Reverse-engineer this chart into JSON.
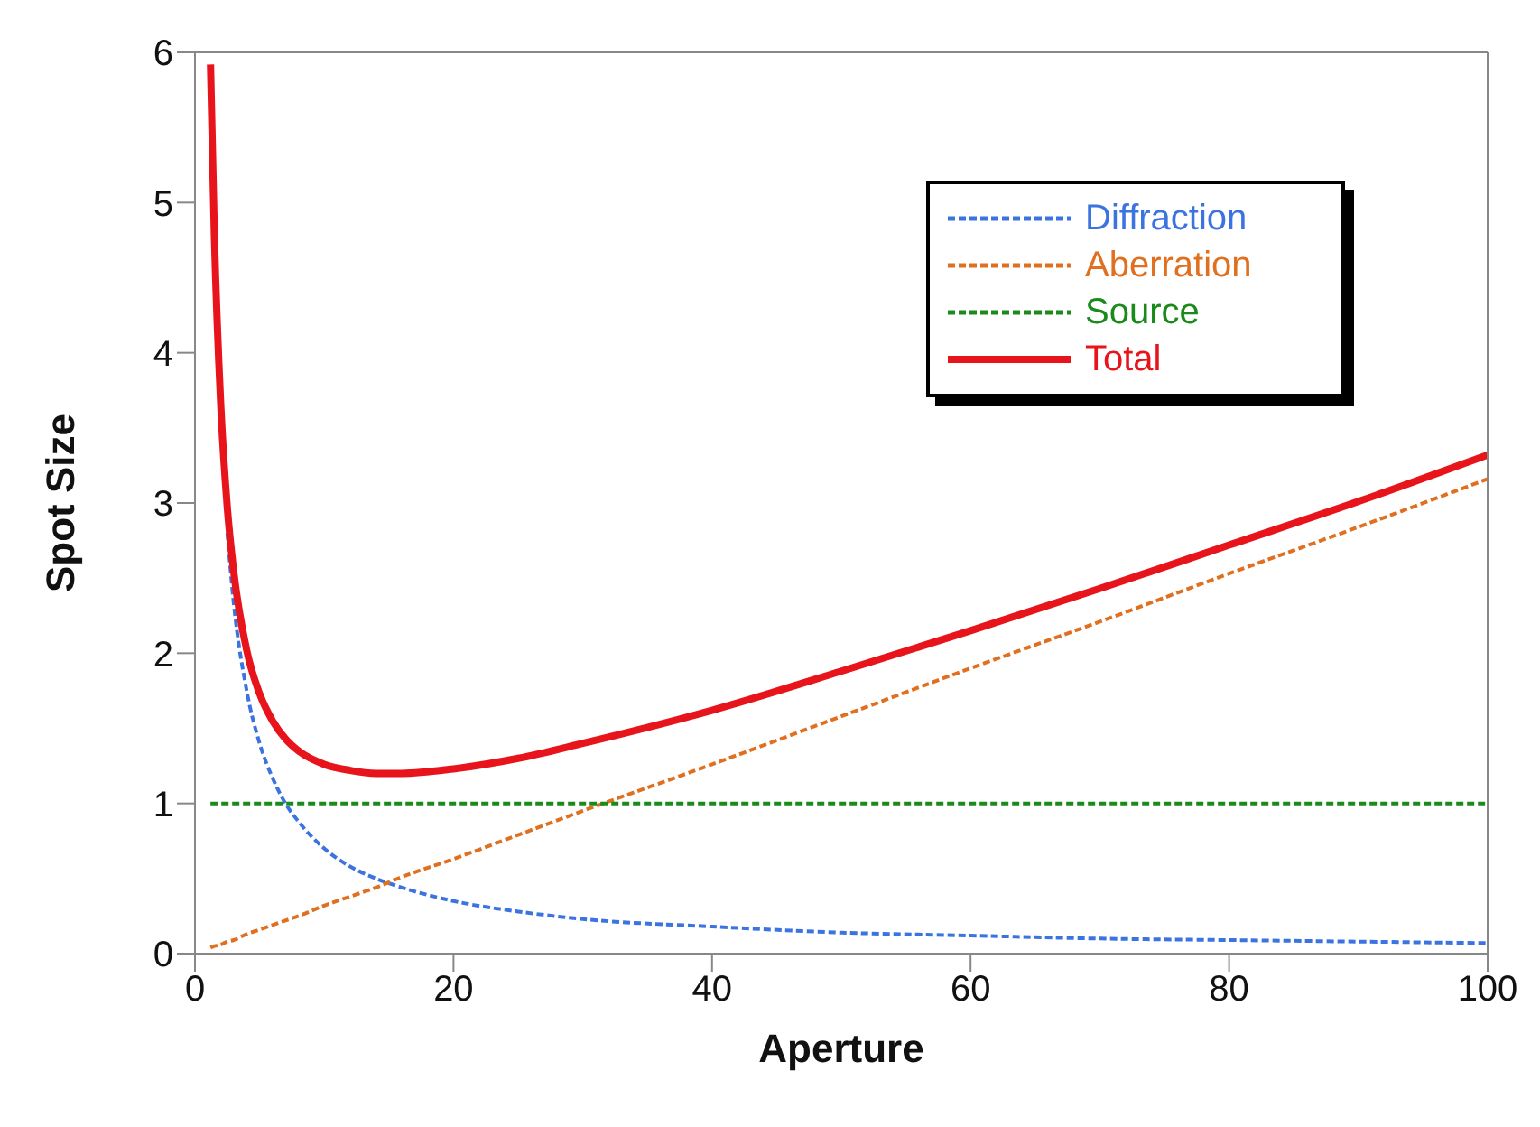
{
  "chart_data": {
    "type": "line",
    "xlabel": "Aperture",
    "ylabel": "Spot Size",
    "x": [
      1.2,
      1.5,
      2,
      2.5,
      3,
      4,
      5,
      6,
      7,
      8,
      10,
      12,
      14,
      16,
      20,
      25,
      30,
      40,
      50,
      60,
      70,
      80,
      90,
      100
    ],
    "series": [
      {
        "name": "Diffraction",
        "color": "#3b73e0",
        "line_style": "dashed",
        "values": [
          null,
          null,
          null,
          2.8,
          2.33,
          1.75,
          1.4,
          1.17,
          1.0,
          0.88,
          0.7,
          0.58,
          0.5,
          0.44,
          0.35,
          0.28,
          0.23,
          0.18,
          0.14,
          0.12,
          0.1,
          0.09,
          0.08,
          0.07
        ]
      },
      {
        "name": "Aberration",
        "color": "#e07020",
        "line_style": "dashed",
        "values": [
          0.04,
          0.05,
          0.06,
          0.08,
          0.09,
          0.13,
          0.16,
          0.19,
          0.22,
          0.25,
          0.32,
          0.38,
          0.44,
          0.51,
          0.63,
          0.79,
          0.95,
          1.26,
          1.58,
          1.9,
          2.21,
          2.53,
          2.84,
          3.16
        ]
      },
      {
        "name": "Source",
        "color": "#1a8a1a",
        "line_style": "dashed",
        "values": [
          1,
          1,
          1,
          1,
          1,
          1,
          1,
          1,
          1,
          1,
          1,
          1,
          1,
          1,
          1,
          1,
          1,
          1,
          1,
          1,
          1,
          1,
          1,
          1
        ]
      },
      {
        "name": "Total",
        "color": "#e8141c",
        "line_style": "solid",
        "values": [
          5.92,
          4.78,
          3.64,
          2.97,
          2.54,
          2.02,
          1.73,
          1.55,
          1.43,
          1.35,
          1.26,
          1.22,
          1.2,
          1.2,
          1.23,
          1.3,
          1.4,
          1.62,
          1.88,
          2.15,
          2.43,
          2.72,
          3.01,
          3.32
        ]
      }
    ],
    "xlim": [
      0,
      100
    ],
    "xticks": [
      0,
      20,
      40,
      60,
      80,
      100
    ],
    "ylim": [
      0,
      6
    ],
    "yticks": [
      0,
      1,
      2,
      3,
      4,
      5,
      6
    ],
    "grid": false,
    "legend": "top right",
    "marker": "none"
  }
}
